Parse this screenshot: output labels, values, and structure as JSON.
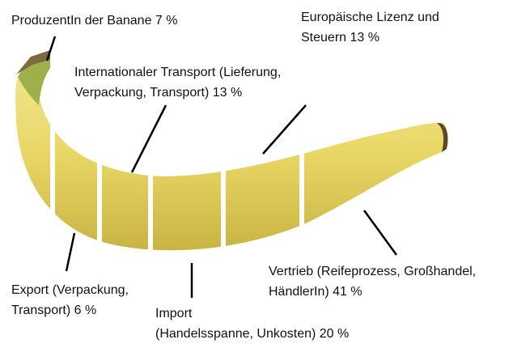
{
  "labels": [
    {
      "lines": [
        "ProduzentIn der Banane 7 %"
      ]
    },
    {
      "lines": [
        "Europäische Lizenz und",
        "Steuern 13 %"
      ]
    },
    {
      "lines": [
        "Internationaler Transport (Lieferung,",
        "Verpackung, Transport) 13 %"
      ]
    },
    {
      "lines": [
        "Export (Verpackung,",
        "Transport) 6 %"
      ]
    },
    {
      "lines": [
        "Import",
        "(Handelsspanne, Unkosten) 20 %"
      ]
    },
    {
      "lines": [
        "Vertrieb (Reifeprozess, Großhandel,",
        "HändlerIn) 41 %"
      ]
    }
  ]
}
